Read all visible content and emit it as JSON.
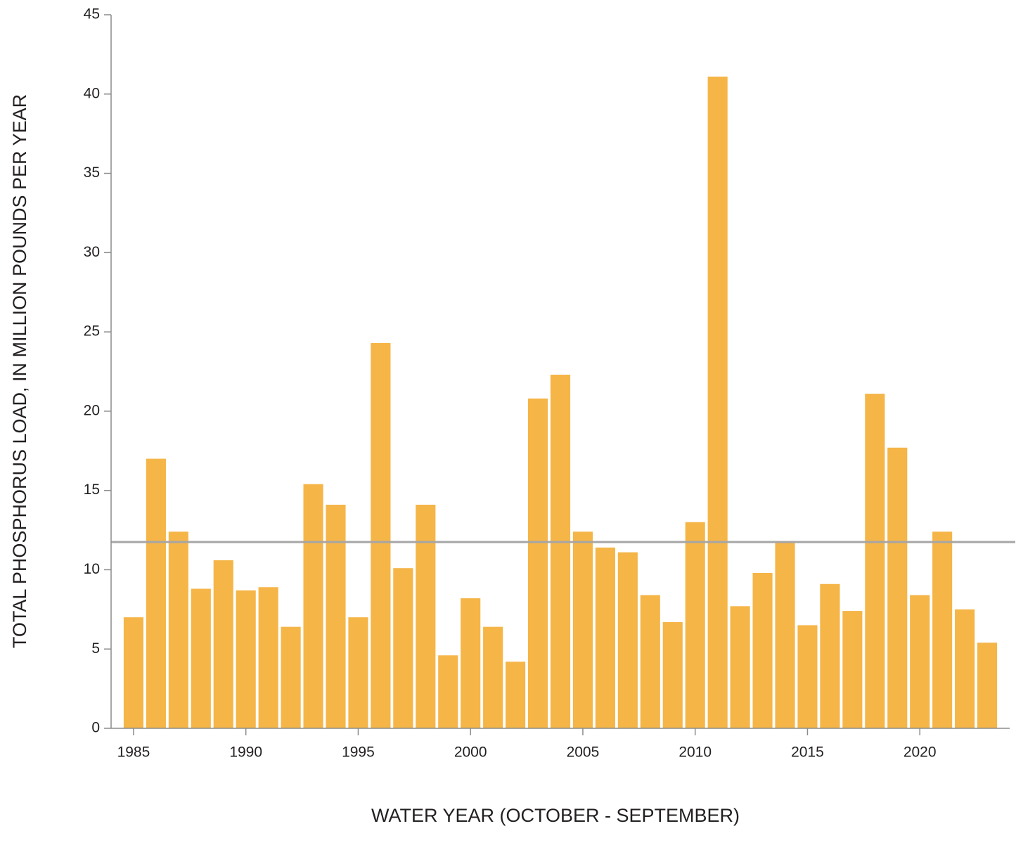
{
  "chart_data": {
    "type": "bar",
    "x_label": "WATER YEAR (OCTOBER - SEPTEMBER)",
    "y_label": "TOTAL PHOSPHORUS LOAD, IN MILLION POUNDS PER YEAR",
    "x": [
      1985,
      1986,
      1987,
      1988,
      1989,
      1990,
      1991,
      1992,
      1993,
      1994,
      1995,
      1996,
      1997,
      1998,
      1999,
      2000,
      2001,
      2002,
      2003,
      2004,
      2005,
      2006,
      2007,
      2008,
      2009,
      2010,
      2011,
      2012,
      2013,
      2014,
      2015,
      2016,
      2017,
      2018,
      2019,
      2020,
      2021,
      2022,
      2023
    ],
    "values": [
      7.0,
      17.0,
      12.4,
      8.8,
      10.6,
      8.7,
      8.9,
      6.4,
      15.4,
      14.1,
      7.0,
      24.3,
      10.1,
      14.1,
      4.6,
      8.2,
      6.4,
      4.2,
      20.8,
      22.3,
      12.4,
      11.4,
      11.1,
      8.4,
      6.7,
      13.0,
      41.1,
      7.7,
      9.8,
      11.8,
      6.5,
      9.1,
      7.4,
      21.1,
      17.7,
      8.4,
      12.4,
      7.5,
      5.4
    ],
    "color": "#f5b547",
    "reference_line": 11.75,
    "reference_color": "#a6a6a6",
    "xlim": [
      1984,
      2024
    ],
    "ylim": [
      0,
      45
    ],
    "xticks": [
      1985,
      1990,
      1995,
      2000,
      2005,
      2010,
      2015,
      2020
    ],
    "yticks": [
      0,
      5,
      10,
      15,
      20,
      25,
      30,
      35,
      40,
      45
    ],
    "grid": false
  }
}
